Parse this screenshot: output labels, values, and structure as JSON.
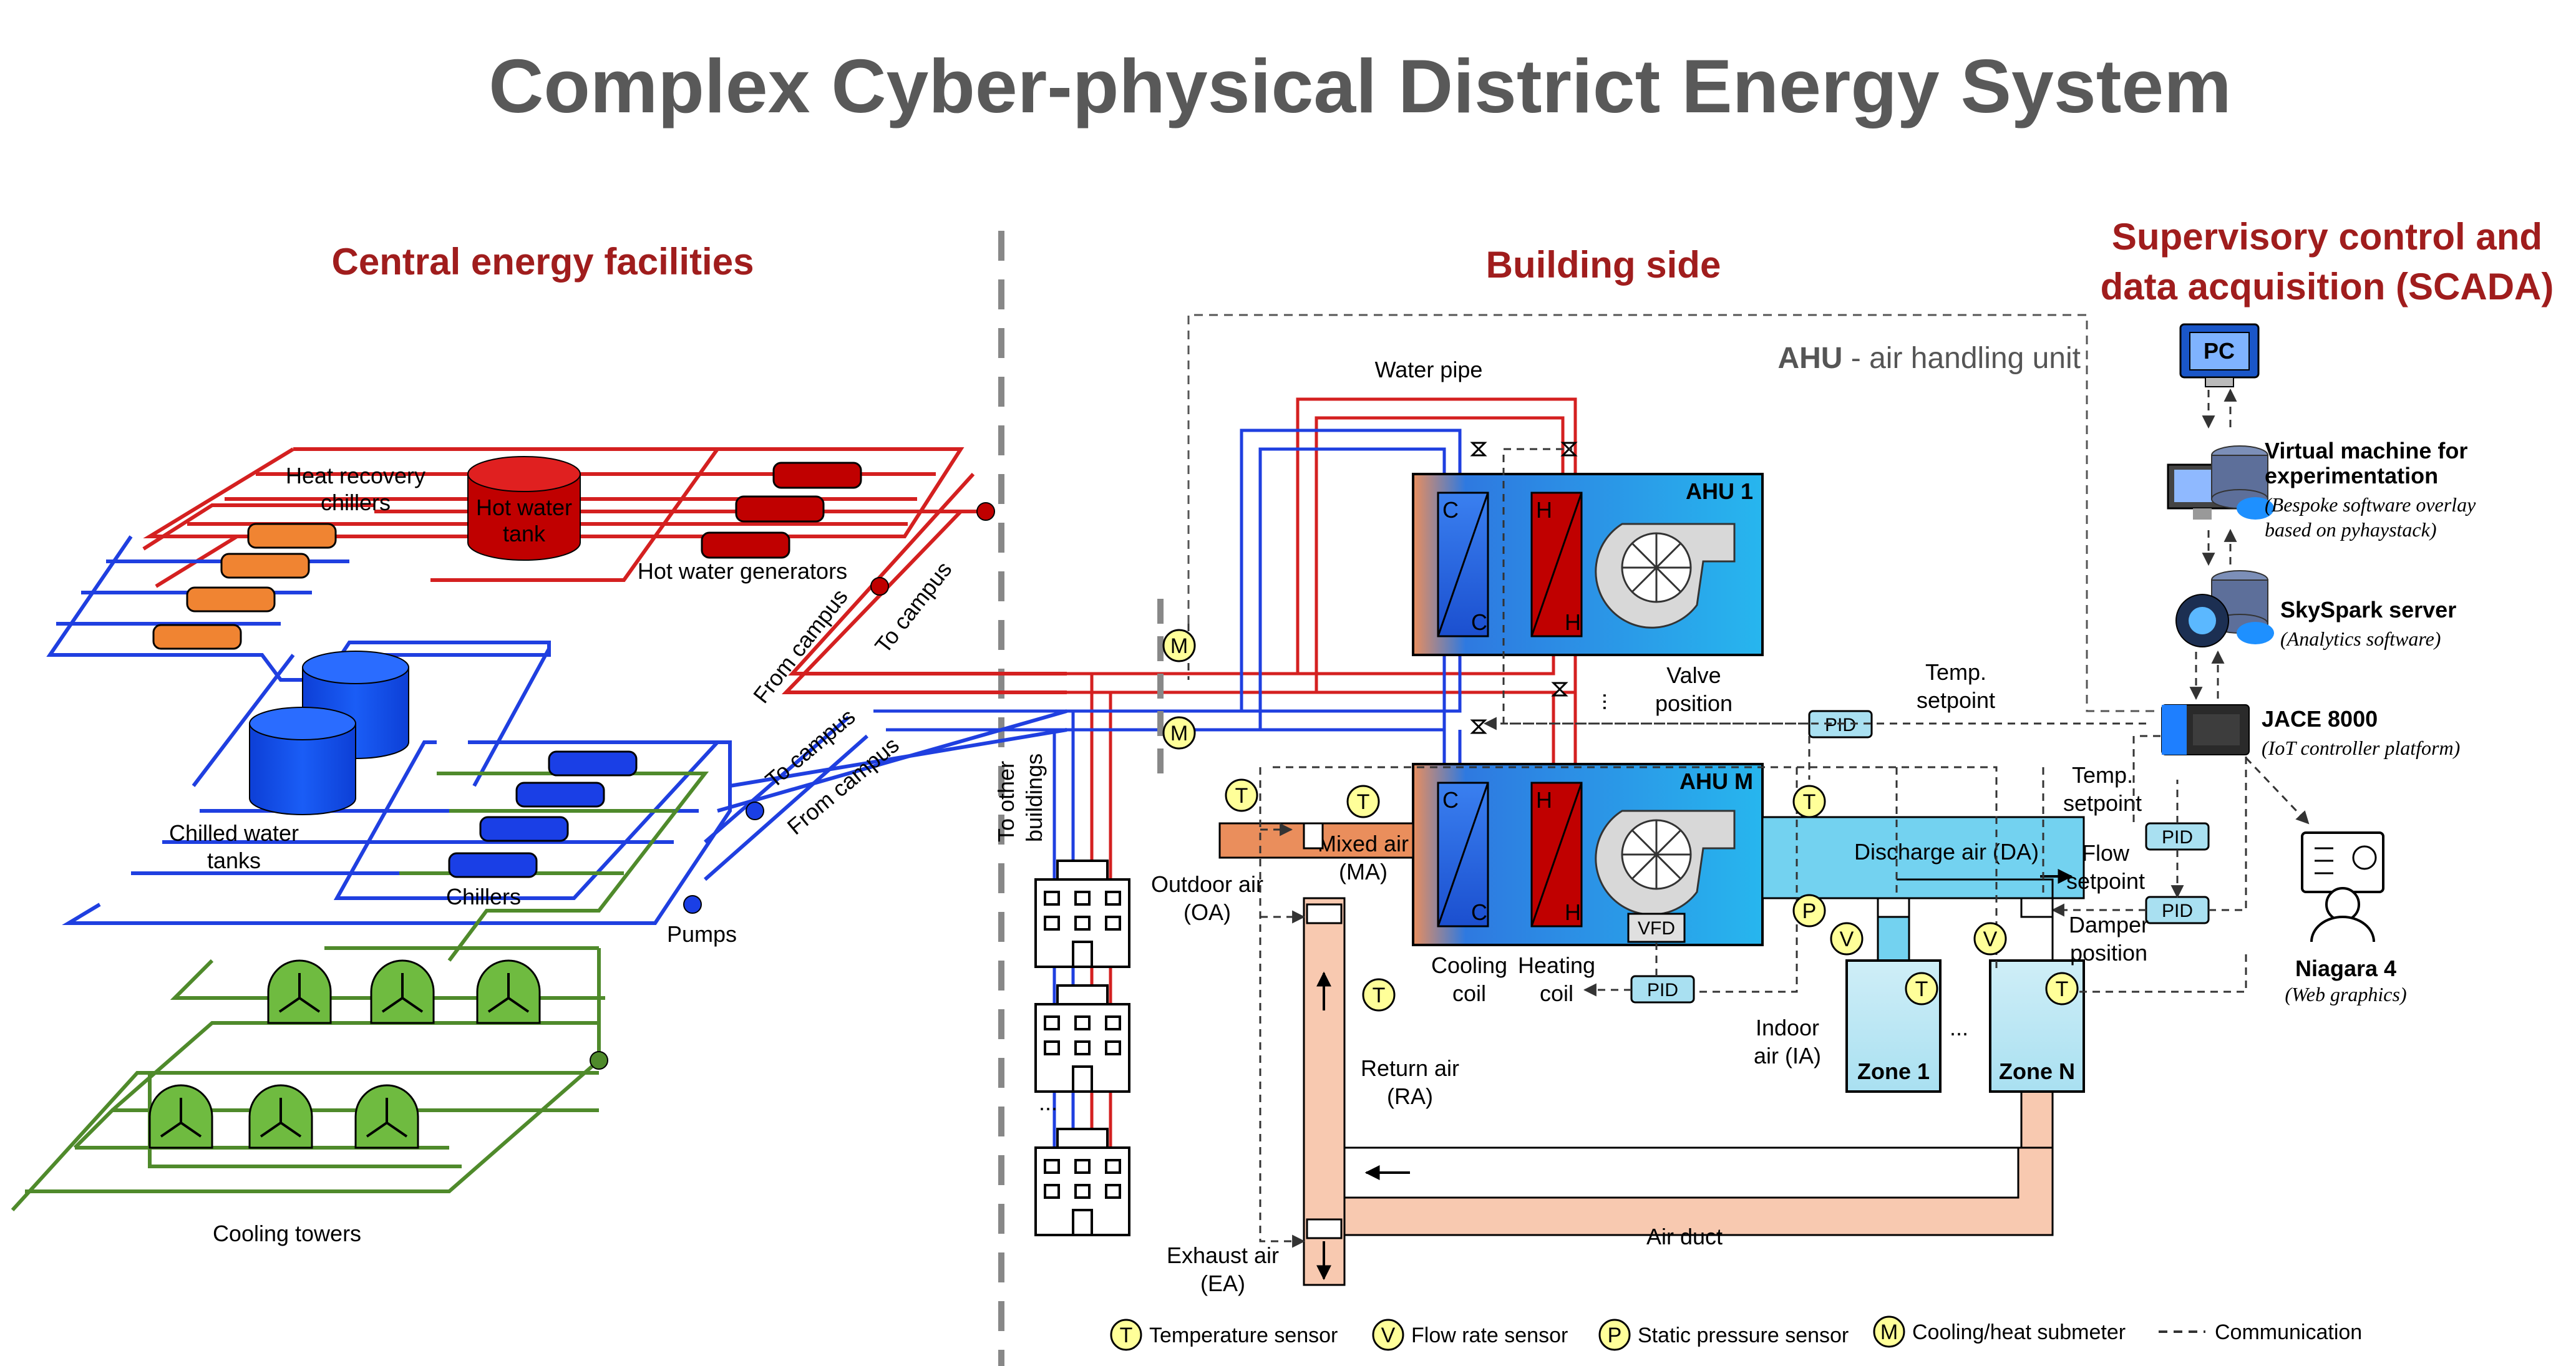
{
  "title": "Complex Cyber-physical District Energy System",
  "sections": {
    "central": "Central energy facilities",
    "building": "Building side",
    "scada_line1": "Supervisory control and",
    "scada_line2": "data acquisition (SCADA)"
  },
  "central": {
    "heat_recovery_1": "Heat recovery",
    "heat_recovery_2": "chillers",
    "hot_water_tank_1": "Hot water",
    "hot_water_tank_2": "tank",
    "hot_water_generators": "Hot water generators",
    "chilled_water_1": "Chilled water",
    "chilled_water_2": "tanks",
    "chillers": "Chillers",
    "pumps": "Pumps",
    "cooling_towers": "Cooling towers",
    "from_campus": "From campus",
    "to_campus": "To campus"
  },
  "building": {
    "water_pipe": "Water pipe",
    "ahu_abbr": "AHU",
    "ahu_desc": " - air handling unit",
    "ahu1": "AHU 1",
    "ahum": "AHU M",
    "coil_c": "C",
    "coil_h": "H",
    "valve_1": "Valve",
    "valve_2": "position",
    "temp_set_1": "Temp.",
    "temp_set_2": "setpoint",
    "to_other_1": "To other",
    "to_other_2": "buildings",
    "mixed_1": "Mixed air",
    "mixed_2": "(MA)",
    "outdoor_1": "Outdoor air",
    "outdoor_2": "(OA)",
    "discharge": "Discharge air (DA)",
    "flow_set_1": "Flow",
    "flow_set_2": "setpoint",
    "damper_1": "Damper",
    "damper_2": "position",
    "vfd": "VFD",
    "pid": "PID",
    "cooling_coil_1": "Cooling",
    "cooling_coil_2": "coil",
    "heating_coil_1": "Heating",
    "heating_coil_2": "coil",
    "indoor_1": "Indoor",
    "indoor_2": "air (IA)",
    "zone1": "Zone 1",
    "zonen": "Zone N",
    "return_1": "Return air",
    "return_2": "(RA)",
    "exhaust_1": "Exhaust air",
    "exhaust_2": "(EA)",
    "air_duct": "Air duct",
    "dots": "..."
  },
  "scada": {
    "pc": "PC",
    "vm_1": "Virtual machine for",
    "vm_2": "experimentation",
    "vm_3": "(Bespoke software overlay",
    "vm_4": "based on pyhaystack)",
    "sky_1": "SkySpark server",
    "sky_2": "(Analytics software)",
    "jace_1": "JACE 8000",
    "jace_2": "(IoT controller platform)",
    "niag_1": "Niagara 4",
    "niag_2": "(Web graphics)"
  },
  "symbols": {
    "t": "T",
    "v": "V",
    "p": "P",
    "m": "M"
  },
  "legend": {
    "temperature": "Temperature sensor",
    "flow": "Flow rate sensor",
    "pressure": "Static pressure sensor",
    "meter": "Cooling/heat submeter",
    "comm": "Communication"
  },
  "colors": {
    "hot_pipe": "#d42020",
    "cold_pipe": "#1f3fe0",
    "cooling_pipe": "#4f8a2b",
    "hot_equipment": "#c00000",
    "chiller_orange": "#f08432",
    "sensor_yellow": "#ffff99",
    "title_gray": "#595959",
    "section_red": "#a01d1d"
  }
}
